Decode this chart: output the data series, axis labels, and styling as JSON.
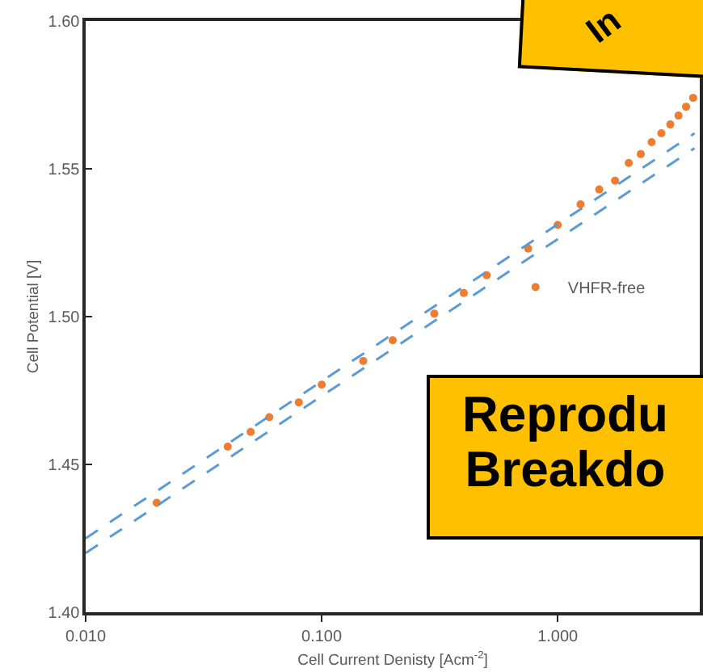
{
  "chart_data": {
    "type": "scatter",
    "xlabel": "Cell Current Denisty [Acm$^{-2}$]",
    "ylabel": "Cell Potential [V]",
    "log": "x",
    "xlim": [
      0.01,
      4
    ],
    "xticks": [
      {
        "value": 0.01,
        "label": "0.010"
      },
      {
        "value": 0.1,
        "label": "0.100"
      },
      {
        "value": 1,
        "label": "1.000"
      }
    ],
    "ylim": [
      1.4,
      1.6
    ],
    "yticks": [
      {
        "value": 1.4,
        "label": "1.40"
      },
      {
        "value": 1.45,
        "label": "1.45"
      },
      {
        "value": 1.5,
        "label": "1.50"
      },
      {
        "value": 1.55,
        "label": "1.55"
      },
      {
        "value": 1.6,
        "label": "1.60"
      }
    ],
    "grid": false,
    "legend": "right",
    "series": [
      {
        "name": "VHFR-free",
        "marker": "circle",
        "color": "#ed7d31",
        "x": [
          0.02,
          0.04,
          0.05,
          0.06,
          0.08,
          0.1,
          0.15,
          0.2,
          0.3,
          0.4,
          0.5,
          0.75,
          1,
          1.25,
          1.5,
          1.75,
          2,
          2.25,
          2.5,
          2.75,
          3,
          3.25,
          3.5,
          3.75
        ],
        "values": [
          1.437,
          1.456,
          1.461,
          1.466,
          1.471,
          1.477,
          1.485,
          1.492,
          1.501,
          1.508,
          1.514,
          1.523,
          1.531,
          1.538,
          1.543,
          1.546,
          1.552,
          1.555,
          1.559,
          1.562,
          1.565,
          1.568,
          1.571,
          1.574
        ]
      },
      {
        "type": "line",
        "line_style": "dashed",
        "color": "#5b9bd5",
        "x": [
          0.01,
          3.8
        ],
        "values": [
          1.425,
          1.562
        ]
      },
      {
        "type": "line",
        "line_style": "dashed",
        "color": "#5b9bd5",
        "x": [
          0.01,
          3.8
        ],
        "values": [
          1.42,
          1.557
        ]
      }
    ],
    "annotations": [
      "In",
      "Reprodu\nBreakdo"
    ]
  }
}
